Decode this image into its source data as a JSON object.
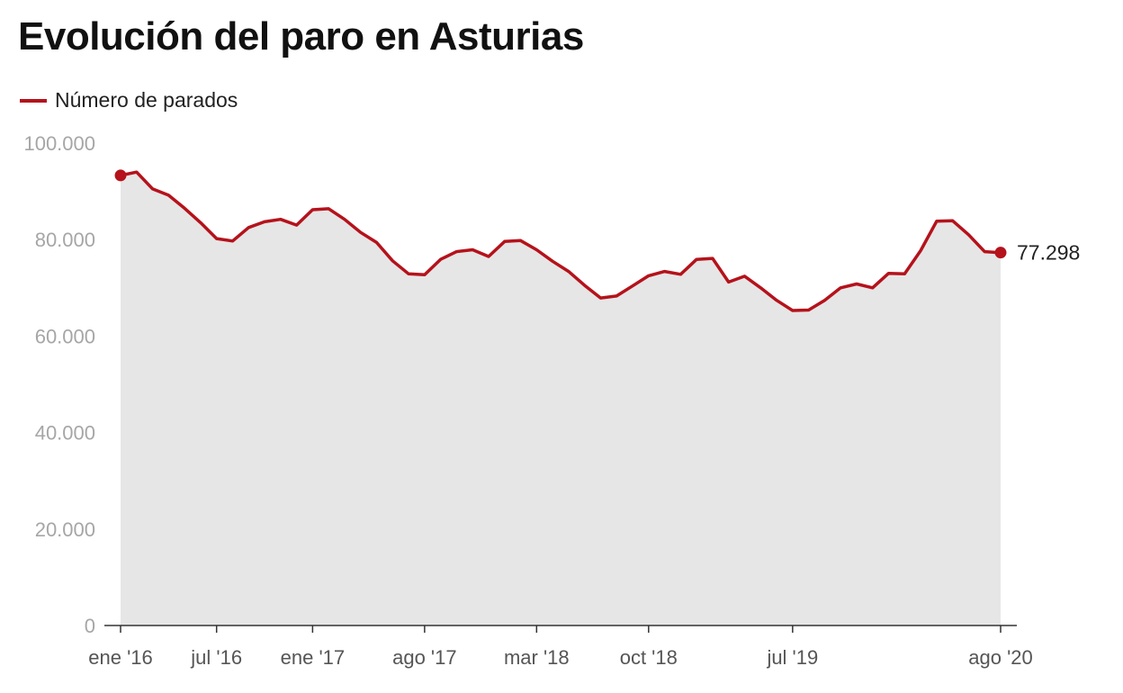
{
  "title": "Evolución del paro en Asturias",
  "colors": {
    "line": "#b5121b",
    "area": "#e6e6e6",
    "axis": "#333333"
  },
  "chart_data": {
    "type": "area",
    "title": "Evolución del paro en Asturias",
    "xlabel": "",
    "ylabel": "",
    "ylim": [
      0,
      100000
    ],
    "yticks": [
      0,
      20000,
      40000,
      60000,
      80000,
      100000
    ],
    "ytick_labels": [
      "0",
      "20.000",
      "40.000",
      "60.000",
      "80.000",
      "100.000"
    ],
    "xticks": [
      {
        "month": "2016-01",
        "label": "ene '16"
      },
      {
        "month": "2016-07",
        "label": "jul '16"
      },
      {
        "month": "2017-01",
        "label": "ene '17"
      },
      {
        "month": "2017-08",
        "label": "ago '17"
      },
      {
        "month": "2018-03",
        "label": "mar '18"
      },
      {
        "month": "2018-10",
        "label": "oct '18"
      },
      {
        "month": "2019-07",
        "label": "jul '19"
      },
      {
        "month": "2020-08",
        "label": "ago '20"
      }
    ],
    "grid": false,
    "legend_position": "top-left",
    "series": [
      {
        "name": "Número de parados",
        "points": [
          [
            "2016-01",
            93300
          ],
          [
            "2016-02",
            94000
          ],
          [
            "2016-03",
            90500
          ],
          [
            "2016-04",
            89200
          ],
          [
            "2016-05",
            86500
          ],
          [
            "2016-06",
            83500
          ],
          [
            "2016-07",
            80200
          ],
          [
            "2016-08",
            79700
          ],
          [
            "2016-09",
            82500
          ],
          [
            "2016-10",
            83700
          ],
          [
            "2016-11",
            84200
          ],
          [
            "2016-12",
            83000
          ],
          [
            "2017-01",
            86200
          ],
          [
            "2017-02",
            86400
          ],
          [
            "2017-03",
            84200
          ],
          [
            "2017-04",
            81500
          ],
          [
            "2017-05",
            79400
          ],
          [
            "2017-06",
            75600
          ],
          [
            "2017-07",
            72900
          ],
          [
            "2017-08",
            72700
          ],
          [
            "2017-09",
            75900
          ],
          [
            "2017-10",
            77500
          ],
          [
            "2017-11",
            77900
          ],
          [
            "2017-12",
            76500
          ],
          [
            "2018-01",
            79600
          ],
          [
            "2018-02",
            79800
          ],
          [
            "2018-03",
            77900
          ],
          [
            "2018-04",
            75500
          ],
          [
            "2018-05",
            73400
          ],
          [
            "2018-06",
            70500
          ],
          [
            "2018-07",
            67900
          ],
          [
            "2018-08",
            68300
          ],
          [
            "2018-09",
            70400
          ],
          [
            "2018-10",
            72500
          ],
          [
            "2018-11",
            73400
          ],
          [
            "2018-12",
            72800
          ],
          [
            "2019-01",
            75900
          ],
          [
            "2019-02",
            76100
          ],
          [
            "2019-03",
            71200
          ],
          [
            "2019-04",
            72400
          ],
          [
            "2019-05",
            70000
          ],
          [
            "2019-06",
            67400
          ],
          [
            "2019-07",
            65300
          ],
          [
            "2019-08",
            65400
          ],
          [
            "2019-09",
            67400
          ],
          [
            "2019-10",
            70000
          ],
          [
            "2019-11",
            70800
          ],
          [
            "2019-12",
            70000
          ],
          [
            "2020-01",
            73000
          ],
          [
            "2020-02",
            72900
          ],
          [
            "2020-03",
            77700
          ],
          [
            "2020-04",
            83800
          ],
          [
            "2020-05",
            83900
          ],
          [
            "2020-06",
            81000
          ],
          [
            "2020-07",
            77500
          ],
          [
            "2020-08",
            77298
          ]
        ]
      }
    ],
    "end_label": "77.298"
  }
}
